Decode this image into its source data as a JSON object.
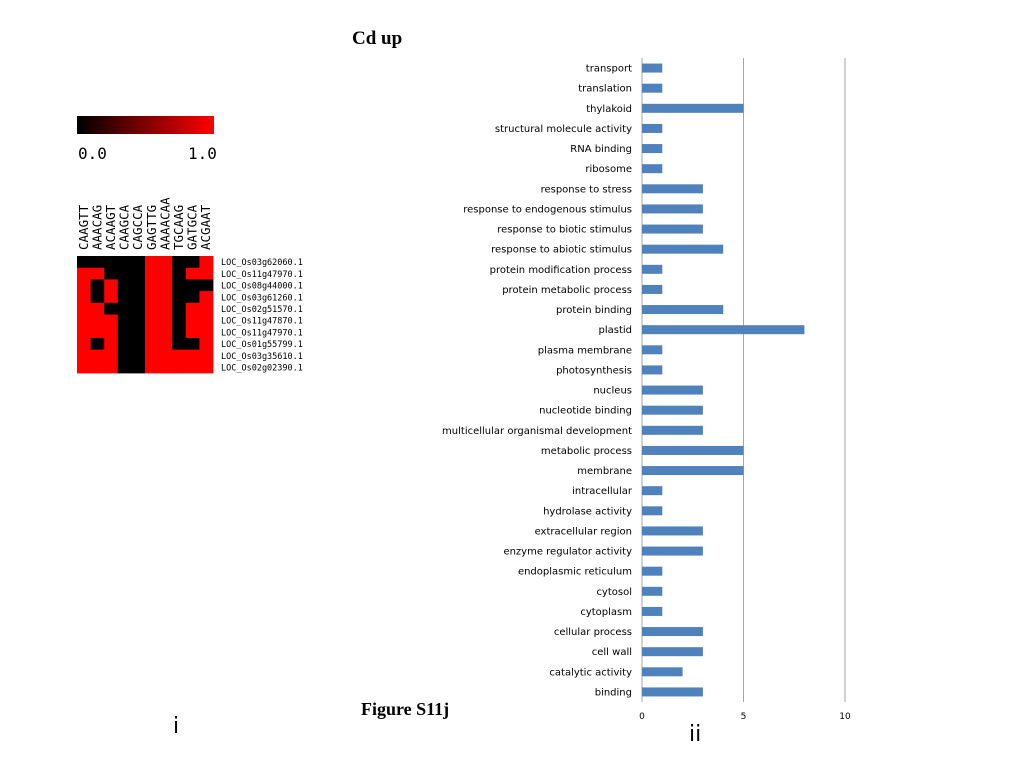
{
  "page": {
    "title": "Cd up",
    "caption": "Figure S11j",
    "panel_labels": [
      "i",
      "ii"
    ]
  },
  "colors": {
    "heat_low": "#000000",
    "heat_high": "#ff0000",
    "bar": "#4f81bd",
    "grid": "#a6a6a6"
  },
  "colorbar": {
    "min_label": "0.0",
    "max_label": "1.0"
  },
  "chart_data": [
    {
      "type": "heatmap",
      "columns": [
        "CAAGTT",
        "AAACAG",
        "ACAAGT",
        "CAAGCA",
        "CAGCCA",
        "GAGTTG",
        "AAAACAA",
        "TGCAAG",
        "GATGCA",
        "ACGAAT"
      ],
      "rows": [
        "LOC_Os03g62060.1",
        "LOC_Os11g47970.1",
        "LOC_Os08g44000.1",
        "LOC_Os03g61260.1",
        "LOC_Os02g51570.1",
        "LOC_Os11g47870.1",
        "LOC_Os11g47970.1",
        "LOC_Os01g55799.1",
        "LOC_Os03g35610.1",
        "LOC_Os02g02390.1"
      ],
      "values": [
        [
          0,
          0,
          0,
          0,
          0,
          1,
          1,
          0,
          0,
          1
        ],
        [
          1,
          1,
          0,
          0,
          0,
          1,
          1,
          0,
          1,
          1
        ],
        [
          1,
          0,
          1,
          0,
          0,
          1,
          1,
          0,
          0,
          0
        ],
        [
          1,
          0,
          1,
          0,
          0,
          1,
          1,
          0,
          0,
          1
        ],
        [
          1,
          1,
          0,
          0,
          0,
          1,
          1,
          0,
          1,
          1
        ],
        [
          1,
          1,
          1,
          0,
          0,
          1,
          1,
          0,
          1,
          1
        ],
        [
          1,
          1,
          1,
          0,
          0,
          1,
          1,
          0,
          1,
          1
        ],
        [
          1,
          0,
          1,
          0,
          0,
          1,
          1,
          0,
          0,
          1
        ],
        [
          1,
          1,
          1,
          0,
          0,
          1,
          1,
          1,
          1,
          1
        ],
        [
          1,
          1,
          1,
          0,
          0,
          1,
          1,
          1,
          1,
          1
        ]
      ],
      "value_range": [
        0.0,
        1.0
      ]
    },
    {
      "type": "bar",
      "orientation": "horizontal",
      "categories": [
        "transport",
        "translation",
        "thylakoid",
        "structural molecule activity",
        "RNA binding",
        "ribosome",
        "response to stress",
        "response to endogenous stimulus",
        "response to biotic stimulus",
        "response to abiotic stimulus",
        "protein modification process",
        "protein metabolic process",
        "protein binding",
        "plastid",
        "plasma membrane",
        "photosynthesis",
        "nucleus",
        "nucleotide binding",
        "multicellular organismal development",
        "metabolic process",
        "membrane",
        "intracellular",
        "hydrolase activity",
        "extracellular region",
        "enzyme regulator activity",
        "endoplasmic reticulum",
        "cytosol",
        "cytoplasm",
        "cellular process",
        "cell wall",
        "catalytic activity",
        "binding"
      ],
      "values": [
        1,
        1,
        5,
        1,
        1,
        1,
        3,
        3,
        3,
        4,
        1,
        1,
        4,
        8,
        1,
        1,
        3,
        3,
        3,
        5,
        5,
        1,
        1,
        3,
        3,
        1,
        1,
        1,
        3,
        3,
        2,
        3
      ],
      "xlim": [
        0,
        10
      ],
      "xticks": [
        "0",
        "5",
        "10"
      ],
      "grid": "vertical"
    }
  ]
}
